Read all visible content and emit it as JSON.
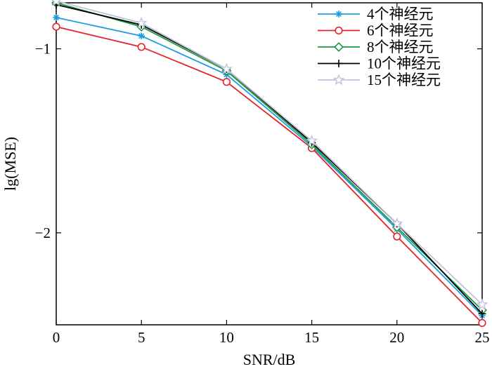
{
  "chart_data": {
    "type": "line",
    "title": "",
    "xlabel": "SNR/dB",
    "ylabel": "lg(MSE)",
    "xlim": [
      0,
      25
    ],
    "ylim": [
      -2.5,
      -0.75
    ],
    "x": [
      0,
      5,
      10,
      15,
      20,
      25
    ],
    "xticks": [
      0,
      5,
      10,
      15,
      20,
      25
    ],
    "yticks": [
      -2,
      -1
    ],
    "ytick_labels": [
      "−2",
      "−1"
    ],
    "grid": false,
    "legend_position": "top-right",
    "series": [
      {
        "name": "4个神经元",
        "color": "#1a9ee0",
        "marker": "asterisk",
        "values": [
          -0.83,
          -0.93,
          -1.14,
          -1.53,
          -1.98,
          -2.45
        ]
      },
      {
        "name": "6个神经元",
        "color": "#e8222a",
        "marker": "circle",
        "values": [
          -0.88,
          -0.99,
          -1.18,
          -1.54,
          -2.02,
          -2.49
        ]
      },
      {
        "name": "8个神经元",
        "color": "#1a9a3a",
        "marker": "diamond",
        "values": [
          -0.75,
          -0.88,
          -1.12,
          -1.52,
          -1.97,
          -2.42
        ]
      },
      {
        "name": "10个神经元",
        "color": "#000000",
        "marker": "plus",
        "values": [
          -0.76,
          -0.87,
          -1.11,
          -1.51,
          -1.95,
          -2.44
        ]
      },
      {
        "name": "15个神经元",
        "color": "#c2c2de",
        "marker": "star",
        "values": [
          -0.74,
          -0.86,
          -1.11,
          -1.5,
          -1.95,
          -2.39
        ]
      }
    ]
  }
}
